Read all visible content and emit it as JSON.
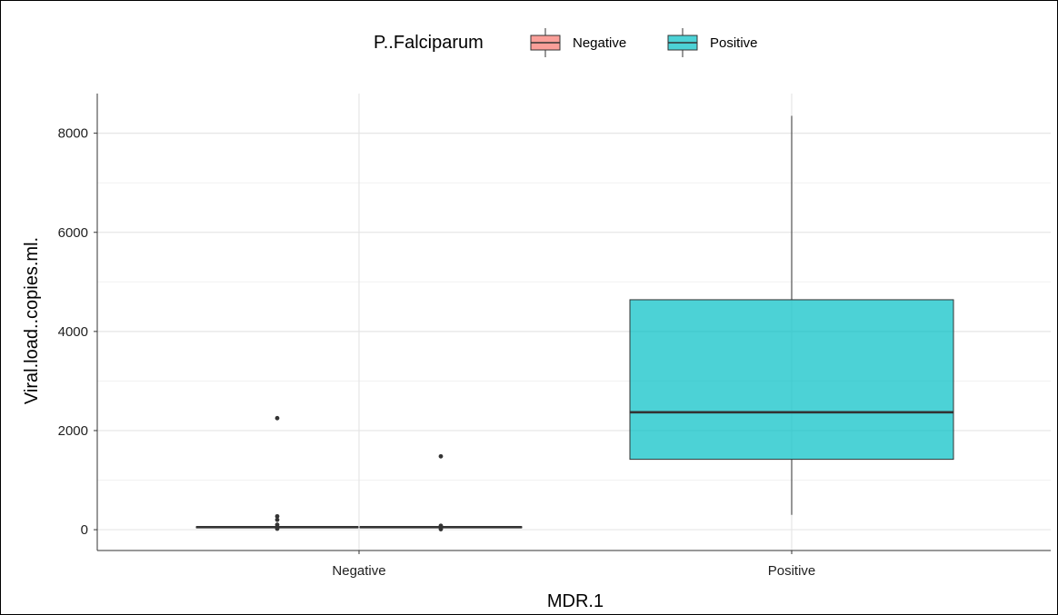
{
  "chart_data": {
    "type": "boxplot",
    "xlabel": "MDR.1",
    "ylabel": "Viral.load..copies.ml.",
    "ylim": [
      -420,
      8800
    ],
    "yticks": [
      0,
      2000,
      4000,
      6000,
      8000
    ],
    "y_tick_labels": [
      "0",
      "2000",
      "4000",
      "6000",
      "8000"
    ],
    "categories": [
      "Negative",
      "Positive"
    ],
    "grid": true,
    "legend": {
      "title": "P..Falciparum",
      "position": "top",
      "entries": [
        {
          "label": "Negative",
          "color": "#F8766D"
        },
        {
          "label": "Positive",
          "color": "#00BFC4"
        }
      ]
    },
    "groups": [
      {
        "category": "Negative",
        "fill_group": "Negative",
        "color": "#F8766D",
        "box": {
          "q1": 40,
          "median": 50,
          "q3": 60,
          "whisker_low": 30,
          "whisker_high": 70
        },
        "outliers": [
          2250,
          270,
          200,
          100,
          20
        ]
      },
      {
        "category": "Negative",
        "fill_group": "Positive",
        "color": "#00BFC4",
        "box": {
          "q1": 40,
          "median": 50,
          "q3": 60,
          "whisker_low": 30,
          "whisker_high": 70
        },
        "outliers": [
          1480,
          80,
          40,
          10
        ]
      },
      {
        "category": "Positive",
        "fill_group": "Positive",
        "color": "#00BFC4",
        "box": {
          "q1": 1420,
          "median": 2370,
          "q3": 4640,
          "whisker_low": 300,
          "whisker_high": 8350
        },
        "outliers": []
      }
    ]
  }
}
